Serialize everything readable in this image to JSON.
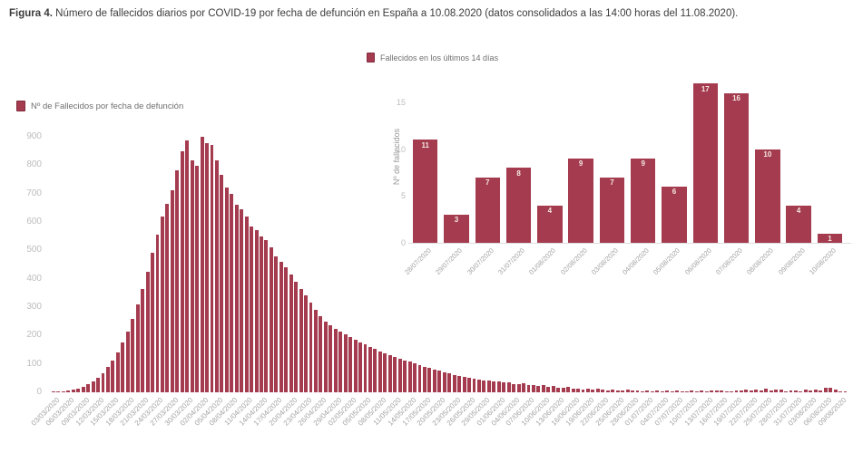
{
  "title": {
    "label": "Figura 4.",
    "caption": " Número de fallecidos diarios por COVID-19 por fecha de defunción en España a 10.08.2020 (datos consolidados a las 14:00 horas del 11.08.2020)."
  },
  "colors": {
    "bar": "#a43b4f",
    "bar_border": "#822c3e",
    "value_label": "#f5e9e1",
    "axis_text": "#bcbcbc",
    "xtick_text": "#a3a3a3"
  },
  "chart_data": [
    {
      "id": "main",
      "type": "bar",
      "legend": "Nº de Fallecidos por fecha de defunción",
      "xlabel": "",
      "ylabel": "",
      "ylim": [
        0,
        900
      ],
      "yticks": [
        0,
        100,
        200,
        300,
        400,
        500,
        600,
        700,
        800,
        900
      ],
      "grid": false,
      "legend_position": "top-left",
      "tick_every": 3,
      "xtick_labels": [
        "03/03/2020",
        "06/03/2020",
        "09/03/2020",
        "12/03/2020",
        "15/03/2020",
        "18/03/2020",
        "21/03/2020",
        "24/03/2020",
        "27/03/2020",
        "30/03/2020",
        "02/04/2020",
        "05/04/2020",
        "08/04/2020",
        "11/04/2020",
        "14/04/2020",
        "17/04/2020",
        "20/04/2020",
        "23/04/2020",
        "26/04/2020",
        "29/04/2020",
        "02/05/2020",
        "05/05/2020",
        "08/05/2020",
        "11/05/2020",
        "14/05/2020",
        "17/05/2020",
        "20/05/2020",
        "23/05/2020",
        "26/05/2020",
        "29/05/2020",
        "01/06/2020",
        "04/06/2020",
        "07/06/2020",
        "10/06/2020",
        "13/06/2020",
        "16/06/2020",
        "19/06/2020",
        "22/06/2020",
        "25/06/2020",
        "28/06/2020",
        "01/07/2020",
        "04/07/2020",
        "07/07/2020",
        "10/07/2020",
        "13/07/2020",
        "16/07/2020",
        "19/07/2020",
        "22/07/2020",
        "25/07/2020",
        "28/07/2020",
        "31/07/2020",
        "03/08/2020",
        "06/08/2020",
        "09/08/2020"
      ],
      "values": [
        2,
        3,
        4,
        6,
        9,
        13,
        19,
        28,
        38,
        52,
        68,
        88,
        112,
        140,
        175,
        215,
        260,
        310,
        365,
        425,
        490,
        555,
        620,
        663,
        711,
        781,
        848,
        886,
        816,
        797,
        900,
        877,
        871,
        816,
        765,
        721,
        700,
        660,
        645,
        618,
        585,
        570,
        550,
        535,
        510,
        480,
        460,
        440,
        415,
        390,
        365,
        340,
        315,
        290,
        268,
        250,
        235,
        225,
        215,
        205,
        195,
        185,
        176,
        168,
        160,
        152,
        145,
        138,
        131,
        125,
        119,
        113,
        107,
        101,
        96,
        91,
        86,
        81,
        76,
        71,
        66,
        62,
        58,
        55,
        52,
        49,
        46,
        43,
        41,
        39,
        38,
        34,
        36,
        30,
        28,
        31,
        25,
        27,
        22,
        24,
        19,
        21,
        17,
        15,
        18,
        13,
        14,
        11,
        12,
        10,
        13,
        9,
        7,
        10,
        8,
        6,
        9,
        5,
        7,
        4,
        5,
        3,
        6,
        4,
        7,
        3,
        5,
        2,
        4,
        6,
        3,
        5,
        4,
        5,
        6,
        7,
        4,
        3,
        5,
        8,
        9,
        7,
        10,
        8,
        12,
        5,
        9,
        11,
        3,
        7,
        8,
        4,
        9,
        7,
        9,
        6,
        17,
        16,
        10,
        4,
        1
      ]
    },
    {
      "id": "inset",
      "type": "bar",
      "legend": "Fallecidos en los últimos 14 días",
      "xlabel": "",
      "ylabel": "Nº de fallecidos",
      "ylim": [
        0,
        17.7
      ],
      "yticks": [
        0,
        5,
        10,
        15
      ],
      "grid": false,
      "legend_position": "top-left",
      "show_value_labels": true,
      "categories": [
        "28/07/2020",
        "29/07/2020",
        "30/07/2020",
        "31/07/2020",
        "01/08/2020",
        "02/08/2020",
        "03/08/2020",
        "04/08/2020",
        "05/08/2020",
        "06/08/2020",
        "07/08/2020",
        "08/08/2020",
        "09/08/2020",
        "10/08/2020"
      ],
      "values": [
        11,
        3,
        7,
        8,
        4,
        9,
        7,
        9,
        6,
        17,
        16,
        10,
        4,
        1
      ]
    }
  ]
}
